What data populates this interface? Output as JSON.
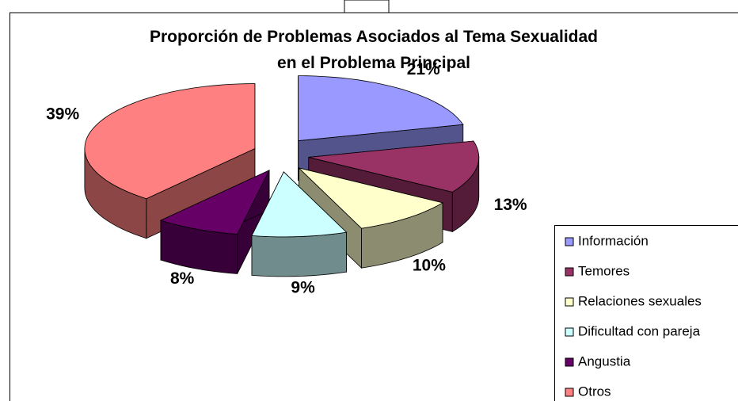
{
  "chart_data": {
    "type": "pie3d",
    "title": "Proporción de Problemas Asociados al Tema Sexualidad\nen el Problema Principal",
    "categories": [
      "Información",
      "Temores",
      "Relaciones sexuales",
      "Dificultad con pareja",
      "Angustia",
      "Otros"
    ],
    "values": [
      21,
      13,
      10,
      9,
      8,
      39
    ],
    "value_labels": [
      "21%",
      "13%",
      "10%",
      "9%",
      "8%",
      "39%"
    ],
    "colors": [
      "#9999ff",
      "#993366",
      "#ffffcc",
      "#ccffff",
      "#660066",
      "#ff8080"
    ],
    "legend": "right"
  }
}
